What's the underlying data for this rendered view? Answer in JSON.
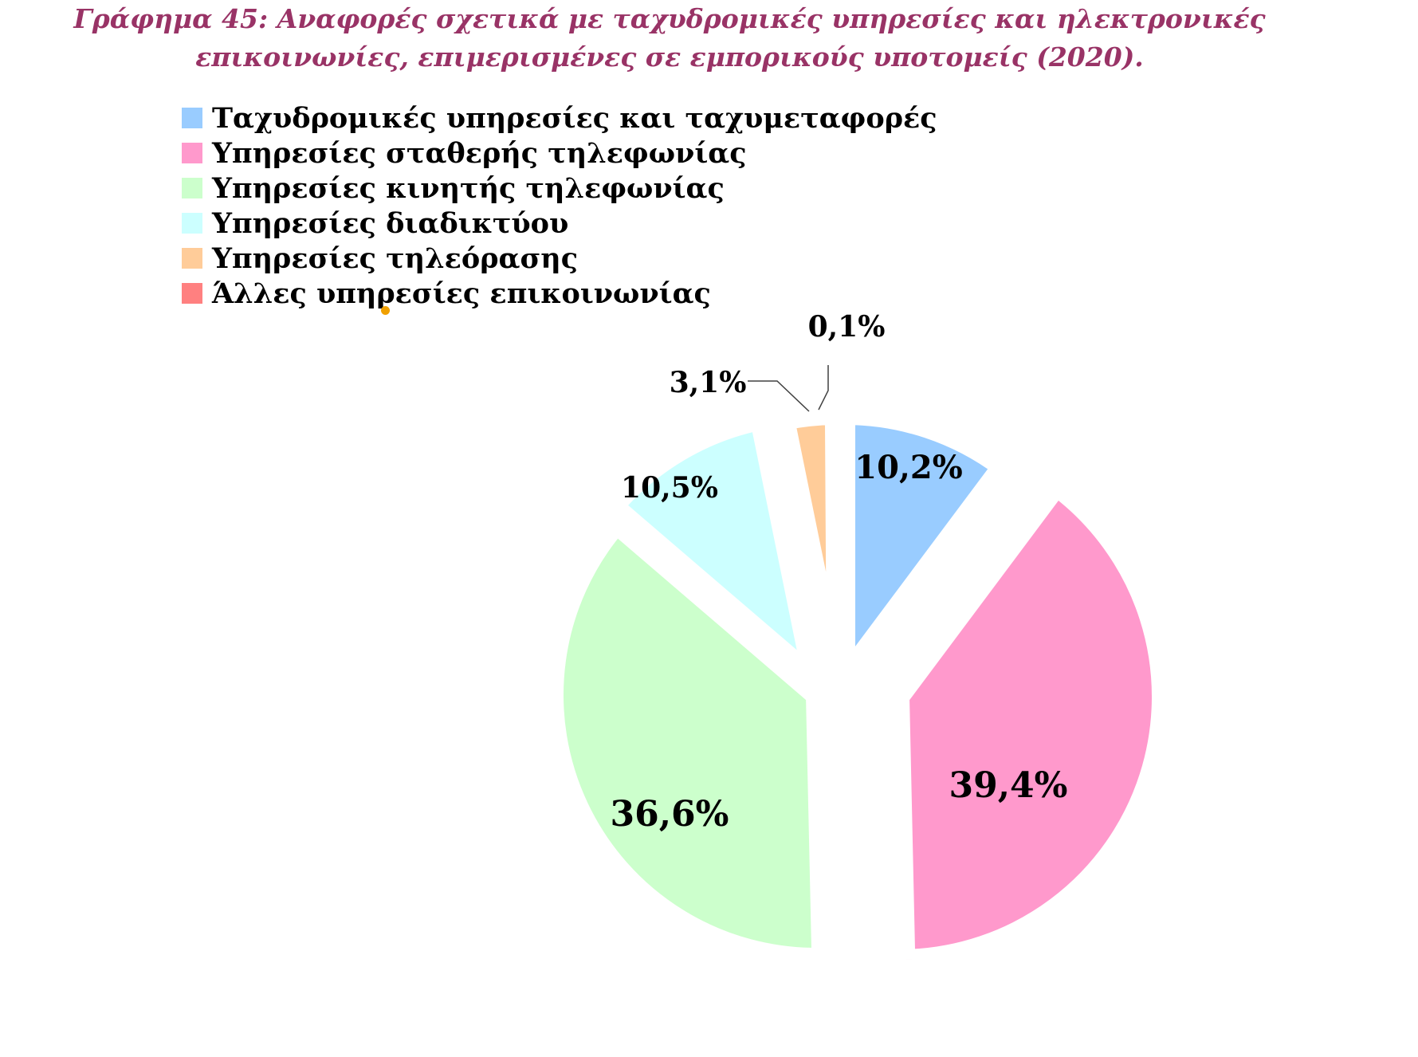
{
  "title_line1": "Γράφημα 45: Αναφορές σχετικά με ταχυδρομικές υπηρεσίες και ηλεκτρονικές",
  "title_line2": "επικοινωνίες, επιμερισμένες σε εμπορικούς υποτομείς (2020).",
  "chart_data": {
    "type": "pie",
    "title": "Γράφημα 45: Αναφορές σχετικά με ταχυδρομικές υπηρεσίες και ηλεκτρονικές επικοινωνίες, επιμερισμένες σε εμπορικούς υποτομείς (2020).",
    "legend_position": "top-left",
    "exploded": true,
    "slices": [
      {
        "name": "Ταχυδρομικές υπηρεσίες και ταχυμεταφορές",
        "value": 10.2,
        "label": "10,2%",
        "color": "#99ccff"
      },
      {
        "name": "Υπηρεσίες σταθερής τηλεφωνίας",
        "value": 39.4,
        "label": "39,4%",
        "color": "#ff99cc"
      },
      {
        "name": "Υπηρεσίες κινητής τηλεφωνίας",
        "value": 36.6,
        "label": "36,6%",
        "color": "#ccffcc"
      },
      {
        "name": "Υπηρεσίες διαδικτύου",
        "value": 10.5,
        "label": "10,5%",
        "color": "#ccffff"
      },
      {
        "name": "Υπηρεσίες τηλεόρασης",
        "value": 3.1,
        "label": "3,1%",
        "color": "#ffcc99"
      },
      {
        "name": "Άλλες υπηρεσίες επικοινωνίας",
        "value": 0.1,
        "label": "0,1%",
        "color": "#ff8080"
      }
    ]
  }
}
